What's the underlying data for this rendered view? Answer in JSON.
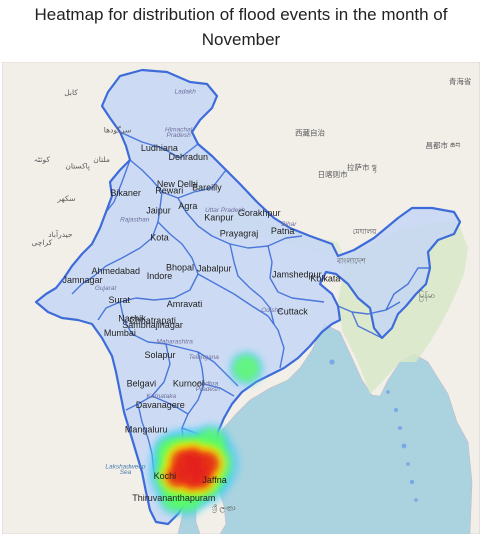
{
  "title_lines": [
    "Heatmap for distribution of flood events in the month of",
    "November"
  ],
  "colors": {
    "sea": "#aad3df",
    "land": "#f2efe9",
    "green_land": "#d8e8c8",
    "india_fill": "#c6d7f4",
    "boundary": "#3d6bd9",
    "heat_low": "#3cc8ff",
    "heat_mid": "#5cff5c",
    "heat_high": "#ffe600",
    "heat_peak": "#e41a1a"
  },
  "cities": [
    {
      "name": "Ludhiana",
      "lon": 75.85,
      "lat": 30.9
    },
    {
      "name": "Dehradun",
      "lon": 78.03,
      "lat": 30.32
    },
    {
      "name": "New Delhi",
      "lon": 77.21,
      "lat": 28.61
    },
    {
      "name": "Bikaner",
      "lon": 73.31,
      "lat": 28.02
    },
    {
      "name": "Rewari",
      "lon": 76.6,
      "lat": 28.19
    },
    {
      "name": "Bareilly",
      "lon": 79.43,
      "lat": 28.37
    },
    {
      "name": "Agra",
      "lon": 78.0,
      "lat": 27.18
    },
    {
      "name": "Jaipur",
      "lon": 75.79,
      "lat": 26.91
    },
    {
      "name": "Kanpur",
      "lon": 80.33,
      "lat": 26.45
    },
    {
      "name": "Gorakhpur",
      "lon": 83.37,
      "lat": 26.76
    },
    {
      "name": "Kota",
      "lon": 75.86,
      "lat": 25.18
    },
    {
      "name": "Prayagraj",
      "lon": 81.85,
      "lat": 25.44
    },
    {
      "name": "Patna",
      "lon": 85.14,
      "lat": 25.59
    },
    {
      "name": "Ahmedabad",
      "lon": 72.57,
      "lat": 23.02
    },
    {
      "name": "Bhopal",
      "lon": 77.41,
      "lat": 23.26
    },
    {
      "name": "Jabalpur",
      "lon": 79.99,
      "lat": 23.18
    },
    {
      "name": "Jamshedpur",
      "lon": 86.2,
      "lat": 22.8
    },
    {
      "name": "Kolkata",
      "lon": 88.36,
      "lat": 22.57
    },
    {
      "name": "Jamnagar",
      "lon": 70.06,
      "lat": 22.47
    },
    {
      "name": "Indore",
      "lon": 75.86,
      "lat": 22.72
    },
    {
      "name": "Surat",
      "lon": 72.83,
      "lat": 21.17
    },
    {
      "name": "Amravati",
      "lon": 77.75,
      "lat": 20.93
    },
    {
      "name": "Cuttack",
      "lon": 85.88,
      "lat": 20.46
    },
    {
      "name": "Nashik",
      "lon": 73.79,
      "lat": 20.0
    },
    {
      "name": "Chhatrapati",
      "lon": 75.34,
      "lat": 19.88
    },
    {
      "name": "Sambhajinagar",
      "lon": 75.34,
      "lat": 19.58
    },
    {
      "name": "Mumbai",
      "lon": 72.88,
      "lat": 19.08
    },
    {
      "name": "Solapur",
      "lon": 75.9,
      "lat": 17.66
    },
    {
      "name": "Belgavi",
      "lon": 74.5,
      "lat": 15.85
    },
    {
      "name": "Kurnool",
      "lon": 78.04,
      "lat": 15.83
    },
    {
      "name": "Davanagere",
      "lon": 75.92,
      "lat": 14.46
    },
    {
      "name": "Mangaluru",
      "lon": 74.86,
      "lat": 12.91
    },
    {
      "name": "Kochi",
      "lon": 76.27,
      "lat": 9.93
    },
    {
      "name": "Jaffna",
      "lon": 80.01,
      "lat": 9.66
    },
    {
      "name": "Thiruvananthapuram",
      "lon": 76.94,
      "lat": 8.52
    }
  ],
  "state_labels": [
    {
      "name": "Ladakh",
      "lon": 77.8,
      "lat": 34.6
    },
    {
      "name": "Himachal",
      "lon": 77.3,
      "lat": 32.15
    },
    {
      "name": "Pradesh",
      "lon": 77.3,
      "lat": 31.8
    },
    {
      "name": "Rajasthan",
      "lon": 74.0,
      "lat": 26.4
    },
    {
      "name": "Uttar Pradesh",
      "lon": 80.8,
      "lat": 27.0
    },
    {
      "name": "Bihar",
      "lon": 85.6,
      "lat": 26.1
    },
    {
      "name": "Gujarat",
      "lon": 71.8,
      "lat": 22.0
    },
    {
      "name": "Odisha",
      "lon": 84.3,
      "lat": 20.6
    },
    {
      "name": "Maharashtra",
      "lon": 77.0,
      "lat": 18.6
    },
    {
      "name": "Telangana",
      "lon": 79.2,
      "lat": 17.6
    },
    {
      "name": "Andhra",
      "lon": 79.5,
      "lat": 15.9
    },
    {
      "name": "Pradesh",
      "lon": 79.5,
      "lat": 15.55
    },
    {
      "name": "Karnataka",
      "lon": 76.0,
      "lat": 15.1
    }
  ],
  "sea_labels": [
    {
      "name": "Lakshadweep",
      "lon": 73.3,
      "lat": 10.6
    },
    {
      "name": "Sea",
      "lon": 73.3,
      "lat": 10.25
    }
  ],
  "foreign_labels": [
    {
      "name": "日喀则市",
      "lon": 88.9,
      "lat": 29.25
    },
    {
      "name": "拉萨市 ལྷ",
      "lon": 91.1,
      "lat": 29.7
    },
    {
      "name": "昌都市 ཆབ",
      "lon": 97.2,
      "lat": 31.1
    },
    {
      "name": "青海省",
      "lon": 98.5,
      "lat": 35.2
    },
    {
      "name": "西藏自治",
      "lon": 87.2,
      "lat": 31.9
    },
    {
      "name": "کابل",
      "lon": 69.2,
      "lat": 34.5
    },
    {
      "name": "سرگودها",
      "lon": 72.7,
      "lat": 32.1
    },
    {
      "name": "ملتان",
      "lon": 71.5,
      "lat": 30.2
    },
    {
      "name": "کوئٹہ",
      "lon": 67.0,
      "lat": 30.2
    },
    {
      "name": "پاکستان",
      "lon": 69.7,
      "lat": 29.8
    },
    {
      "name": "سکھر",
      "lon": 68.85,
      "lat": 27.7
    },
    {
      "name": "حیدرآباد",
      "lon": 68.4,
      "lat": 25.4
    },
    {
      "name": "کراچی",
      "lon": 67.0,
      "lat": 24.9
    },
    {
      "name": "মেঘালয়",
      "lon": 91.3,
      "lat": 25.6
    },
    {
      "name": "বাংলাদেশ",
      "lon": 90.3,
      "lat": 23.7
    },
    {
      "name": "မြန်မာ",
      "lon": 96.0,
      "lat": 21.5
    },
    {
      "name": "ශ්‍රී ලංකා",
      "lon": 80.7,
      "lat": 7.9
    }
  ],
  "heatmap_points": [
    {
      "lon": 77.7,
      "lat": 11.0,
      "intensity": 1.0
    },
    {
      "lon": 78.4,
      "lat": 11.2,
      "intensity": 0.85
    },
    {
      "lon": 79.4,
      "lat": 10.9,
      "intensity": 0.95
    },
    {
      "lon": 77.2,
      "lat": 10.1,
      "intensity": 0.8
    },
    {
      "lon": 78.3,
      "lat": 9.9,
      "intensity": 0.75
    },
    {
      "lon": 79.0,
      "lat": 10.0,
      "intensity": 0.8
    },
    {
      "lon": 76.8,
      "lat": 11.6,
      "intensity": 0.45
    },
    {
      "lon": 79.7,
      "lat": 12.2,
      "intensity": 0.45
    },
    {
      "lon": 78.0,
      "lat": 8.8,
      "intensity": 0.45
    },
    {
      "lon": 77.0,
      "lat": 8.7,
      "intensity": 0.35
    },
    {
      "lon": 82.4,
      "lat": 17.0,
      "intensity": 0.35
    }
  ]
}
